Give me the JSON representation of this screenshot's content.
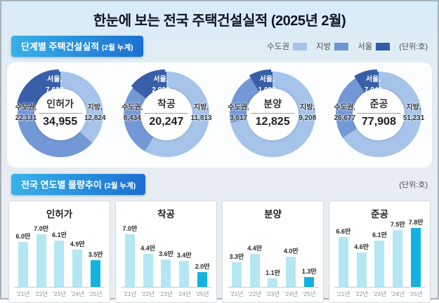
{
  "title": "한눈에 보는 전국 주택건설실적 (2025년 2월)",
  "colors": {
    "jibang_segment": "#a6c4ea",
    "sudogwon_segment": "#7398d6",
    "seoul_segment": "#3a5fa9",
    "bar": "#b4e7f2",
    "bar_highlight": "#12b3e0",
    "badge_from": "#38b1e9",
    "badge_to": "#1b6fd0"
  },
  "legend": [
    {
      "label": "수도권",
      "color": "#a6c4ea"
    },
    {
      "label": "지방",
      "color": "#6e94d1"
    },
    {
      "label": "서울",
      "color": "#2f5ba8"
    }
  ],
  "section1": {
    "title": "단계별 주택건설실적",
    "subtitle": "(2월 누계)",
    "units": "(단위:호)",
    "donuts": [
      {
        "name": "인허가",
        "total": "34,955",
        "total_v": 34955,
        "seoul_label": "서울,",
        "seoul": "7,627",
        "seoul_v": 7627,
        "sudogwon_label": "수도권,",
        "sudogwon": "22,131",
        "sudogwon_v": 22131,
        "jibang_label": "지방,",
        "jibang": "12,824",
        "jibang_v": 12824
      },
      {
        "name": "착공",
        "total": "20,247",
        "total_v": 20247,
        "seoul_label": "서울,",
        "seoul": "2,938",
        "seoul_v": 2938,
        "sudogwon_label": "수도권,",
        "sudogwon": "8,434",
        "sudogwon_v": 8434,
        "jibang_label": "지방,",
        "jibang": "11,813",
        "jibang_v": 11813
      },
      {
        "name": "분양",
        "total": "12,825",
        "total_v": 12825,
        "seoul_label": "서울,",
        "seoul": "1,097",
        "seoul_v": 1097,
        "sudogwon_label": "수도권,",
        "sudogwon": "3,617",
        "sudogwon_v": 3617,
        "jibang_label": "지방,",
        "jibang": "9,208",
        "jibang_v": 9208
      },
      {
        "name": "준공",
        "total": "77,908",
        "total_v": 77908,
        "seoul_label": "서울,",
        "seoul": "7,046",
        "seoul_v": 7046,
        "sudogwon_label": "수도권,",
        "sudogwon": "26,677",
        "sudogwon_v": 26677,
        "jibang_label": "지방,",
        "jibang": "51,231",
        "jibang_v": 51231
      }
    ]
  },
  "section2": {
    "title": "전국 연도별 물량추이",
    "subtitle": "(2월 누계)",
    "units": "(단위:호)",
    "charts": [
      {
        "title": "인허가",
        "categories": [
          "'21년",
          "'22년",
          "'23년",
          "'24년",
          "'25년"
        ],
        "values": [
          6.0,
          7.0,
          6.1,
          4.9,
          3.5
        ],
        "labels": [
          "6.0만",
          "7.0만",
          "6.1만",
          "4.9만",
          "3.5만"
        ]
      },
      {
        "title": "착공",
        "categories": [
          "'21년",
          "'22년",
          "'23년",
          "'24년",
          "'25년"
        ],
        "values": [
          7.0,
          4.4,
          3.6,
          3.4,
          2.0
        ],
        "labels": [
          "7.0만",
          "4.4만",
          "3.6만",
          "3.4만",
          "2.0만"
        ]
      },
      {
        "title": "분양",
        "categories": [
          "'21년",
          "'22년",
          "'23년",
          "'24년",
          "'25년"
        ],
        "values": [
          3.3,
          4.4,
          1.1,
          4.0,
          1.3
        ],
        "labels": [
          "3.3만",
          "4.4만",
          "1.1만",
          "4.0만",
          "1.3만"
        ]
      },
      {
        "title": "준공",
        "categories": [
          "'21년",
          "'22년",
          "'23년",
          "'24년",
          "'25년"
        ],
        "values": [
          6.6,
          4.6,
          6.1,
          7.5,
          7.8
        ],
        "labels": [
          "6.6만",
          "4.6만",
          "6.1만",
          "7.5만",
          "7.8만"
        ]
      }
    ]
  },
  "chart_data": [
    {
      "type": "pie",
      "title": "인허가",
      "labels": [
        "서울",
        "수도권",
        "지방"
      ],
      "values": [
        7627,
        22131,
        12824
      ],
      "total": 34955,
      "unit": "호"
    },
    {
      "type": "pie",
      "title": "착공",
      "labels": [
        "서울",
        "수도권",
        "지방"
      ],
      "values": [
        2938,
        8434,
        11813
      ],
      "total": 20247,
      "unit": "호"
    },
    {
      "type": "pie",
      "title": "분양",
      "labels": [
        "서울",
        "수도권",
        "지방"
      ],
      "values": [
        1097,
        3617,
        9208
      ],
      "total": 12825,
      "unit": "호"
    },
    {
      "type": "pie",
      "title": "준공",
      "labels": [
        "서울",
        "수도권",
        "지방"
      ],
      "values": [
        7046,
        26677,
        51231
      ],
      "total": 77908,
      "unit": "호"
    },
    {
      "type": "bar",
      "title": "인허가",
      "categories": [
        "'21년",
        "'22년",
        "'23년",
        "'24년",
        "'25년"
      ],
      "values": [
        6.0,
        7.0,
        6.1,
        4.9,
        3.5
      ],
      "unit": "만 호",
      "ylim": [
        0,
        8
      ],
      "highlight_last": true
    },
    {
      "type": "bar",
      "title": "착공",
      "categories": [
        "'21년",
        "'22년",
        "'23년",
        "'24년",
        "'25년"
      ],
      "values": [
        7.0,
        4.4,
        3.6,
        3.4,
        2.0
      ],
      "unit": "만 호",
      "ylim": [
        0,
        8
      ],
      "highlight_last": true
    },
    {
      "type": "bar",
      "title": "분양",
      "categories": [
        "'21년",
        "'22년",
        "'23년",
        "'24년",
        "'25년"
      ],
      "values": [
        3.3,
        4.4,
        1.1,
        4.0,
        1.3
      ],
      "unit": "만 호",
      "ylim": [
        0,
        8
      ],
      "highlight_last": true
    },
    {
      "type": "bar",
      "title": "준공",
      "categories": [
        "'21년",
        "'22년",
        "'23년",
        "'24년",
        "'25년"
      ],
      "values": [
        6.6,
        4.6,
        6.1,
        7.5,
        7.8
      ],
      "unit": "만 호",
      "ylim": [
        0,
        8
      ],
      "highlight_last": true
    }
  ]
}
